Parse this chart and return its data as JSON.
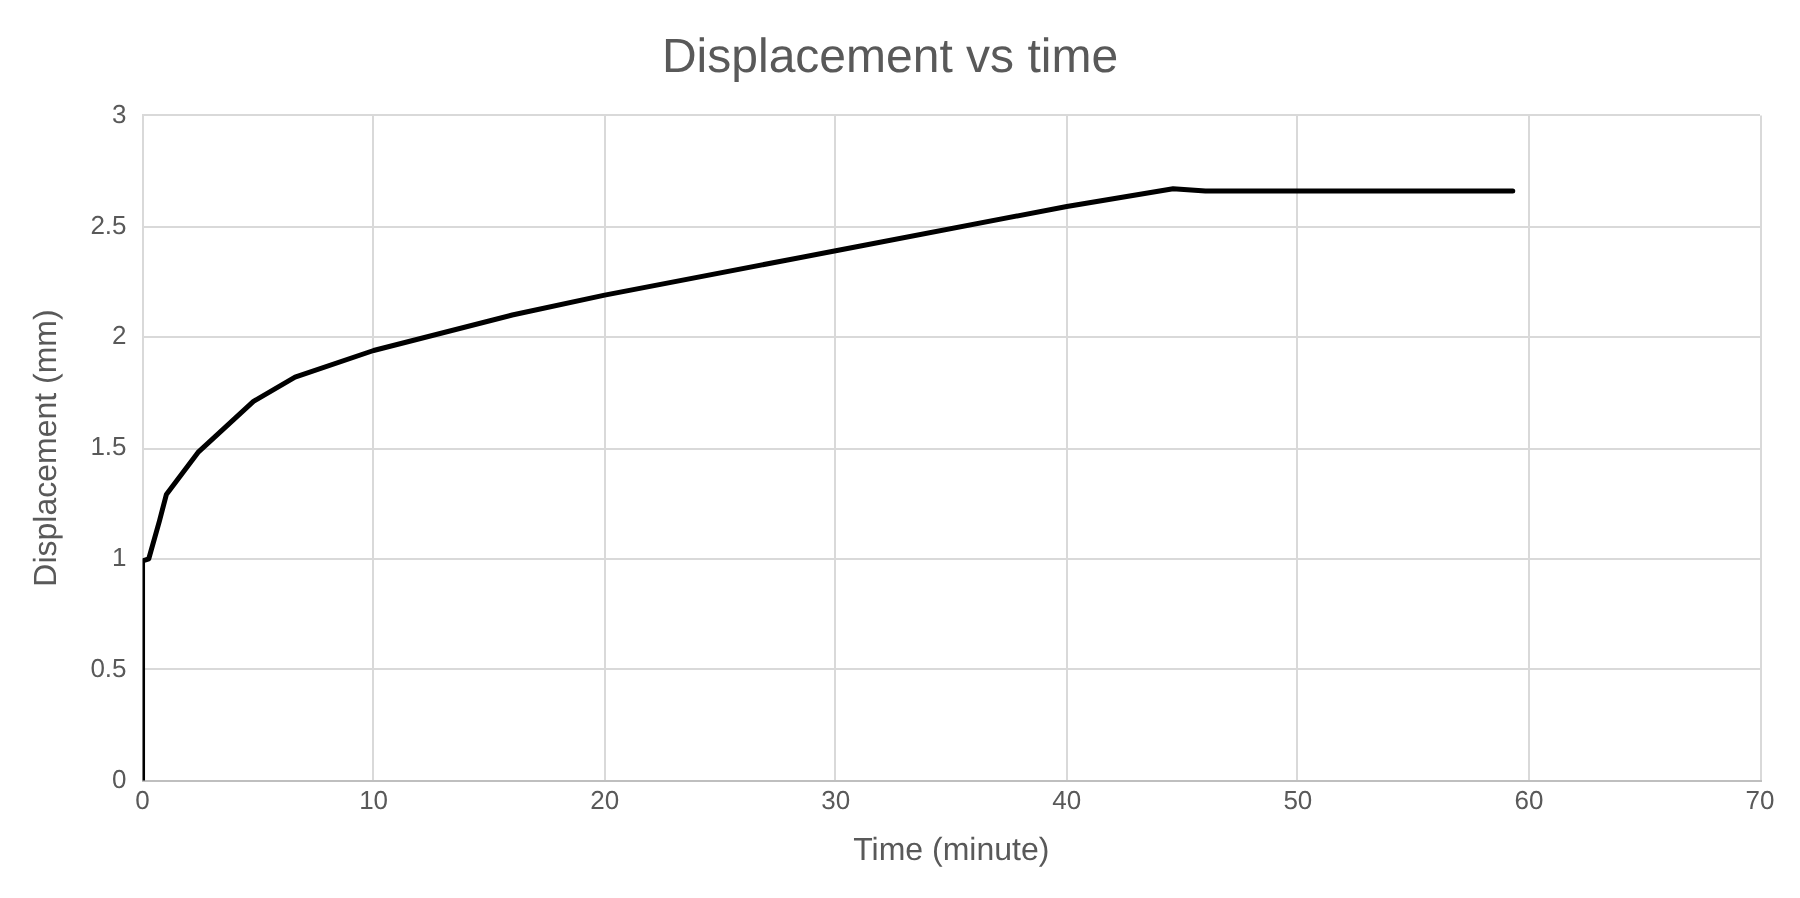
{
  "chart_data": {
    "type": "line",
    "title": "Displacement vs time",
    "xlabel": "Time (minute)",
    "ylabel": "Displacement (mm)",
    "series": [
      {
        "color": "#000000",
        "x": [
          0,
          0,
          0.27,
          0.73,
          1.03,
          2.4,
          4.8,
          6.6,
          10,
          16,
          20,
          30,
          40,
          44.6,
          46,
          59.3
        ],
        "values": [
          0,
          0.99,
          1.0,
          1.17,
          1.29,
          1.48,
          1.71,
          1.82,
          1.94,
          2.1,
          2.19,
          2.39,
          2.59,
          2.67,
          2.66,
          2.66
        ]
      }
    ],
    "xlim": [
      0,
      70
    ],
    "xticks": [
      0,
      10,
      20,
      30,
      40,
      50,
      60,
      70
    ],
    "ylim": [
      0,
      3
    ],
    "yticks": [
      0,
      0.5,
      1,
      1.5,
      2,
      2.5,
      3
    ],
    "grid": true,
    "legend": false,
    "marker": "none",
    "line_style": "solid"
  }
}
